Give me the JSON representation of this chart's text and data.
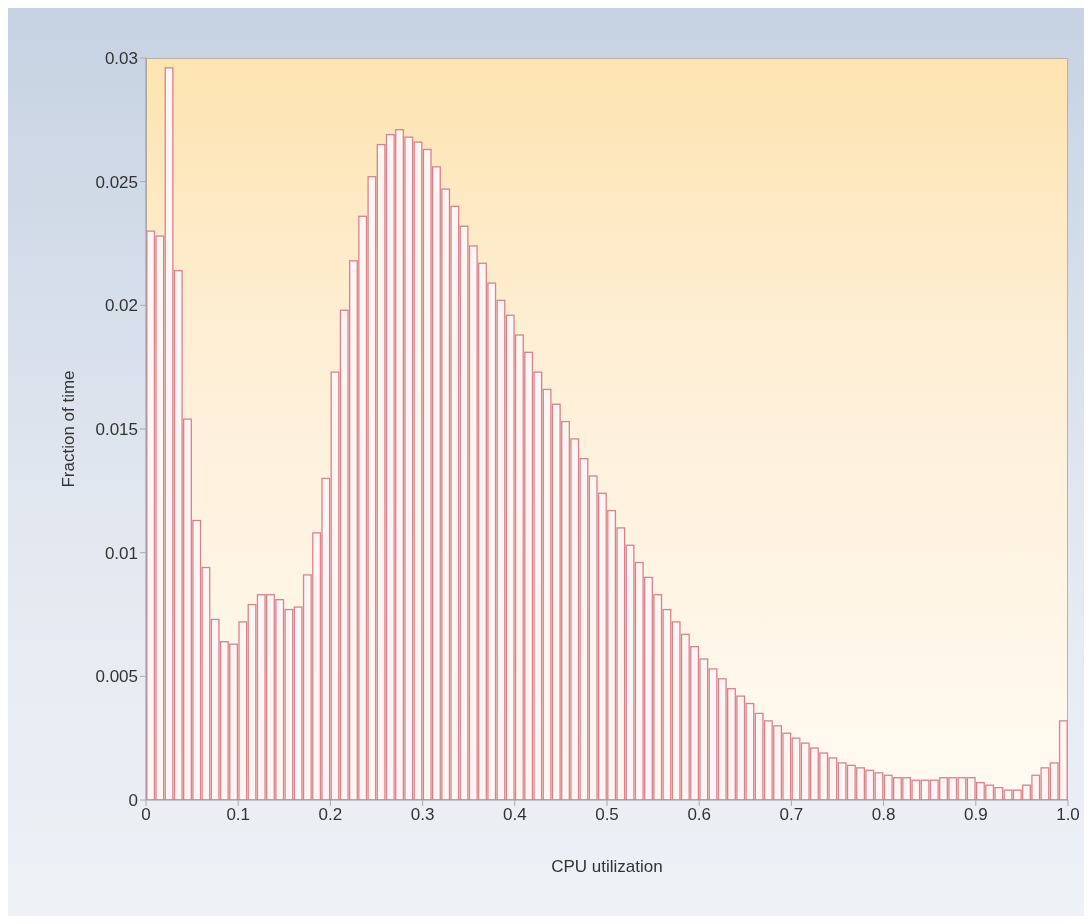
{
  "chart_data": {
    "type": "histogram",
    "xlabel": "CPU utilization",
    "ylabel": "Fraction of time",
    "color": "#d9828c",
    "bins": [
      0,
      0.01,
      0.02,
      0.03,
      0.04,
      0.05,
      0.06,
      0.07,
      0.08,
      0.09,
      0.1,
      0.11,
      0.12,
      0.13,
      0.14,
      0.15,
      0.16,
      0.17,
      0.18,
      0.19,
      0.2,
      0.21,
      0.22,
      0.23,
      0.24,
      0.25,
      0.26,
      0.27,
      0.28,
      0.29,
      0.3,
      0.31,
      0.32,
      0.33,
      0.34,
      0.35,
      0.36,
      0.37,
      0.38,
      0.39,
      0.4,
      0.41,
      0.42,
      0.43,
      0.44,
      0.45,
      0.46,
      0.47,
      0.48,
      0.49,
      0.5,
      0.51,
      0.52,
      0.53,
      0.54,
      0.55,
      0.56,
      0.57,
      0.58,
      0.59,
      0.6,
      0.61,
      0.62,
      0.63,
      0.64,
      0.65,
      0.66,
      0.67,
      0.68,
      0.69,
      0.7,
      0.71,
      0.72,
      0.73,
      0.74,
      0.75,
      0.76,
      0.77,
      0.78,
      0.79,
      0.8,
      0.81,
      0.82,
      0.83,
      0.84,
      0.85,
      0.86,
      0.87,
      0.88,
      0.89,
      0.9,
      0.91,
      0.92,
      0.93,
      0.94,
      0.95,
      0.96,
      0.97,
      0.98,
      0.99,
      1
    ],
    "values": [
      0.023,
      0.0228,
      0.0296,
      0.0214,
      0.0154,
      0.0113,
      0.0094,
      0.0073,
      0.0064,
      0.0063,
      0.0072,
      0.0079,
      0.0083,
      0.0083,
      0.0081,
      0.0077,
      0.0078,
      0.0091,
      0.0108,
      0.013,
      0.0173,
      0.0198,
      0.0218,
      0.0236,
      0.0252,
      0.0265,
      0.0269,
      0.0271,
      0.0268,
      0.0266,
      0.0263,
      0.0256,
      0.0247,
      0.024,
      0.0232,
      0.0224,
      0.0217,
      0.0209,
      0.0202,
      0.0196,
      0.0188,
      0.0181,
      0.0173,
      0.0166,
      0.016,
      0.0153,
      0.0146,
      0.0138,
      0.0131,
      0.0124,
      0.0117,
      0.011,
      0.0103,
      0.0096,
      0.009,
      0.0083,
      0.0077,
      0.0072,
      0.0067,
      0.0062,
      0.0057,
      0.0053,
      0.0049,
      0.0045,
      0.0042,
      0.0039,
      0.0035,
      0.0032,
      0.003,
      0.0027,
      0.0025,
      0.0023,
      0.0021,
      0.0019,
      0.0017,
      0.0015,
      0.0014,
      0.0013,
      0.0012,
      0.0011,
      0.001,
      0.0009,
      0.0009,
      0.0008,
      0.0008,
      0.0008,
      0.0009,
      0.0009,
      0.0009,
      0.0009,
      0.0007,
      0.0006,
      0.0005,
      0.0004,
      0.0004,
      0.0006,
      0.001,
      0.0013,
      0.0015,
      0.0032
    ],
    "xlim": [
      0,
      1
    ],
    "xticks": [
      0,
      0.1,
      0.2,
      0.3,
      0.4,
      0.5,
      0.6,
      0.7,
      0.8,
      0.9,
      {
        "value": 1,
        "label": "1.0"
      }
    ],
    "ylim": [
      0,
      0.03
    ],
    "yticks": [
      0,
      0.005,
      0.01,
      0.015,
      0.02,
      0.025,
      0.03
    ]
  }
}
